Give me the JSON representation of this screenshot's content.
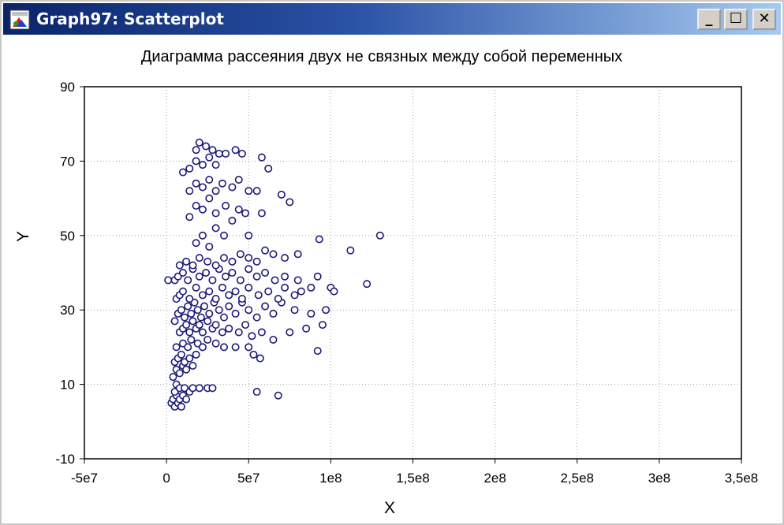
{
  "window": {
    "title": "Graph97: Scatterplot",
    "buttons": {
      "minimize": "_",
      "maximize": "☐",
      "close": "✕"
    },
    "icons": {
      "app": "chart-app-icon"
    }
  },
  "colors": {
    "marker_fill": "#ffffff",
    "marker_stroke": "#1a1a7a",
    "grid": "#a0a0a0",
    "title_bar": "#0a246a"
  },
  "chart_data": {
    "type": "scatter",
    "title": "Диаграмма рассеяния двух не связных между собой переменных",
    "xlabel": "X",
    "ylabel": "Y",
    "xlim": [
      -50000000,
      350000000
    ],
    "ylim": [
      -10,
      90
    ],
    "x_ticks": [
      -50000000,
      0,
      50000000,
      100000000,
      150000000,
      200000000,
      250000000,
      300000000,
      350000000
    ],
    "x_tick_labels": [
      "-5e7",
      "0",
      "5e7",
      "1e8",
      "1,5e8",
      "2e8",
      "2,5e8",
      "3e8",
      "3,5e8"
    ],
    "y_ticks": [
      -10,
      10,
      30,
      50,
      70,
      90
    ],
    "y_tick_labels": [
      "-10",
      "10",
      "30",
      "50",
      "70",
      "90"
    ],
    "grid": true,
    "series": [
      {
        "points": [
          [
            3000000.0,
            5
          ],
          [
            4000000.0,
            6
          ],
          [
            5000000.0,
            4
          ],
          [
            6000000.0,
            7
          ],
          [
            7000000.0,
            5
          ],
          [
            8000000.0,
            6
          ],
          [
            5000000.0,
            8
          ],
          [
            9000000.0,
            4
          ],
          [
            10000000.0,
            7
          ],
          [
            12000000.0,
            6
          ],
          [
            6000000.0,
            10
          ],
          [
            8000000.0,
            9
          ],
          [
            11000000.0,
            9
          ],
          [
            14000000.0,
            8
          ],
          [
            16000000.0,
            9
          ],
          [
            20000000.0,
            9
          ],
          [
            25000000.0,
            9
          ],
          [
            28000000.0,
            9
          ],
          [
            55000000.0,
            8
          ],
          [
            68000000.0,
            7
          ],
          [
            4000000.0,
            12
          ],
          [
            6000000.0,
            14
          ],
          [
            8000000.0,
            13
          ],
          [
            10000000.0,
            15
          ],
          [
            12000000.0,
            14
          ],
          [
            5000000.0,
            16
          ],
          [
            7000000.0,
            17
          ],
          [
            9000000.0,
            18
          ],
          [
            11000000.0,
            16
          ],
          [
            14000000.0,
            17
          ],
          [
            16000000.0,
            15
          ],
          [
            18000000.0,
            18
          ],
          [
            6000000.0,
            20
          ],
          [
            10000000.0,
            21
          ],
          [
            13000000.0,
            20
          ],
          [
            15000000.0,
            22
          ],
          [
            19000000.0,
            21
          ],
          [
            22000000.0,
            20
          ],
          [
            25000000.0,
            22
          ],
          [
            30000000.0,
            21
          ],
          [
            35000000.0,
            20
          ],
          [
            42000000.0,
            20
          ],
          [
            50000000.0,
            20
          ],
          [
            53000000.0,
            18
          ],
          [
            57000000.0,
            17
          ],
          [
            92000000.0,
            19
          ],
          [
            8000000.0,
            24
          ],
          [
            10000000.0,
            25
          ],
          [
            12000000.0,
            26
          ],
          [
            14000000.0,
            24
          ],
          [
            16000000.0,
            27
          ],
          [
            18000000.0,
            25
          ],
          [
            20000000.0,
            26
          ],
          [
            22000000.0,
            24
          ],
          [
            25000000.0,
            27
          ],
          [
            28000000.0,
            25
          ],
          [
            30000000.0,
            26
          ],
          [
            34000000.0,
            24
          ],
          [
            38000000.0,
            25
          ],
          [
            44000000.0,
            24
          ],
          [
            48000000.0,
            26
          ],
          [
            52000000.0,
            23
          ],
          [
            58000000.0,
            24
          ],
          [
            65000000.0,
            22
          ],
          [
            75000000.0,
            24
          ],
          [
            85000000.0,
            25
          ],
          [
            95000000.0,
            26
          ],
          [
            5000000.0,
            27
          ],
          [
            7000000.0,
            29
          ],
          [
            9000000.0,
            30
          ],
          [
            11000000.0,
            28
          ],
          [
            13000000.0,
            31
          ],
          [
            15000000.0,
            29
          ],
          [
            17000000.0,
            32
          ],
          [
            19000000.0,
            30
          ],
          [
            21000000.0,
            28
          ],
          [
            23000000.0,
            31
          ],
          [
            26000000.0,
            29
          ],
          [
            29000000.0,
            32
          ],
          [
            32000000.0,
            30
          ],
          [
            35000000.0,
            28
          ],
          [
            38000000.0,
            31
          ],
          [
            42000000.0,
            29
          ],
          [
            46000000.0,
            32
          ],
          [
            50000000.0,
            30
          ],
          [
            55000000.0,
            28
          ],
          [
            60000000.0,
            31
          ],
          [
            65000000.0,
            29
          ],
          [
            70000000.0,
            32
          ],
          [
            78000000.0,
            30
          ],
          [
            88000000.0,
            29
          ],
          [
            97000000.0,
            30
          ],
          [
            6000000.0,
            33
          ],
          [
            8000000.0,
            34
          ],
          [
            10000000.0,
            35
          ],
          [
            14000000.0,
            33
          ],
          [
            18000000.0,
            36
          ],
          [
            22000000.0,
            34
          ],
          [
            26000000.0,
            35
          ],
          [
            30000000.0,
            33
          ],
          [
            34000000.0,
            36
          ],
          [
            38000000.0,
            34
          ],
          [
            42000000.0,
            35
          ],
          [
            46000000.0,
            33
          ],
          [
            50000000.0,
            36
          ],
          [
            56000000.0,
            34
          ],
          [
            62000000.0,
            35
          ],
          [
            68000000.0,
            33
          ],
          [
            72000000.0,
            36
          ],
          [
            78000000.0,
            34
          ],
          [
            82000000.0,
            35
          ],
          [
            88000000.0,
            36
          ],
          [
            100000000.0,
            36
          ],
          [
            102000000.0,
            35
          ],
          [
            122000000.0,
            37
          ],
          [
            5000000.0,
            38
          ],
          [
            7000000.0,
            39
          ],
          [
            10000000.0,
            40
          ],
          [
            13000000.0,
            38
          ],
          [
            16000000.0,
            41
          ],
          [
            20000000.0,
            39
          ],
          [
            24000000.0,
            40
          ],
          [
            28000000.0,
            38
          ],
          [
            32000000.0,
            41
          ],
          [
            36000000.0,
            39
          ],
          [
            40000000.0,
            40
          ],
          [
            45000000.0,
            38
          ],
          [
            50000000.0,
            41
          ],
          [
            55000000.0,
            39
          ],
          [
            60000000.0,
            40
          ],
          [
            66000000.0,
            38
          ],
          [
            72000000.0,
            39
          ],
          [
            80000000.0,
            38
          ],
          [
            92000000.0,
            39
          ],
          [
            1000000.0,
            38
          ],
          [
            8000000.0,
            42
          ],
          [
            12000000.0,
            43
          ],
          [
            16000000.0,
            42
          ],
          [
            20000000.0,
            44
          ],
          [
            25000000.0,
            43
          ],
          [
            30000000.0,
            42
          ],
          [
            35000000.0,
            44
          ],
          [
            40000000.0,
            43
          ],
          [
            45000000.0,
            45
          ],
          [
            50000000.0,
            44
          ],
          [
            55000000.0,
            43
          ],
          [
            60000000.0,
            46
          ],
          [
            65000000.0,
            45
          ],
          [
            72000000.0,
            44
          ],
          [
            80000000.0,
            45
          ],
          [
            112000000.0,
            46
          ],
          [
            18000000.0,
            48
          ],
          [
            22000000.0,
            50
          ],
          [
            26000000.0,
            47
          ],
          [
            30000000.0,
            52
          ],
          [
            35000000.0,
            50
          ],
          [
            50000000.0,
            50
          ],
          [
            93000000.0,
            49
          ],
          [
            130000000.0,
            50
          ],
          [
            14000000.0,
            55
          ],
          [
            18000000.0,
            58
          ],
          [
            22000000.0,
            57
          ],
          [
            26000000.0,
            60
          ],
          [
            30000000.0,
            56
          ],
          [
            36000000.0,
            58
          ],
          [
            40000000.0,
            54
          ],
          [
            44000000.0,
            57
          ],
          [
            48000000.0,
            56
          ],
          [
            58000000.0,
            56
          ],
          [
            75000000.0,
            59
          ],
          [
            70000000.0,
            61
          ],
          [
            14000000.0,
            62
          ],
          [
            18000000.0,
            64
          ],
          [
            22000000.0,
            63
          ],
          [
            26000000.0,
            65
          ],
          [
            30000000.0,
            62
          ],
          [
            34000000.0,
            64
          ],
          [
            40000000.0,
            63
          ],
          [
            44000000.0,
            65
          ],
          [
            50000000.0,
            62
          ],
          [
            55000000.0,
            62
          ],
          [
            62000000.0,
            68
          ],
          [
            10000000.0,
            67
          ],
          [
            14000000.0,
            68
          ],
          [
            18000000.0,
            70
          ],
          [
            22000000.0,
            69
          ],
          [
            26000000.0,
            71
          ],
          [
            30000000.0,
            69
          ],
          [
            36000000.0,
            72
          ],
          [
            42000000.0,
            73
          ],
          [
            58000000.0,
            71
          ],
          [
            18000000.0,
            73
          ],
          [
            20000000.0,
            75
          ],
          [
            24000000.0,
            74
          ],
          [
            28000000.0,
            73
          ],
          [
            32000000.0,
            72
          ],
          [
            46000000.0,
            72
          ]
        ]
      }
    ]
  }
}
